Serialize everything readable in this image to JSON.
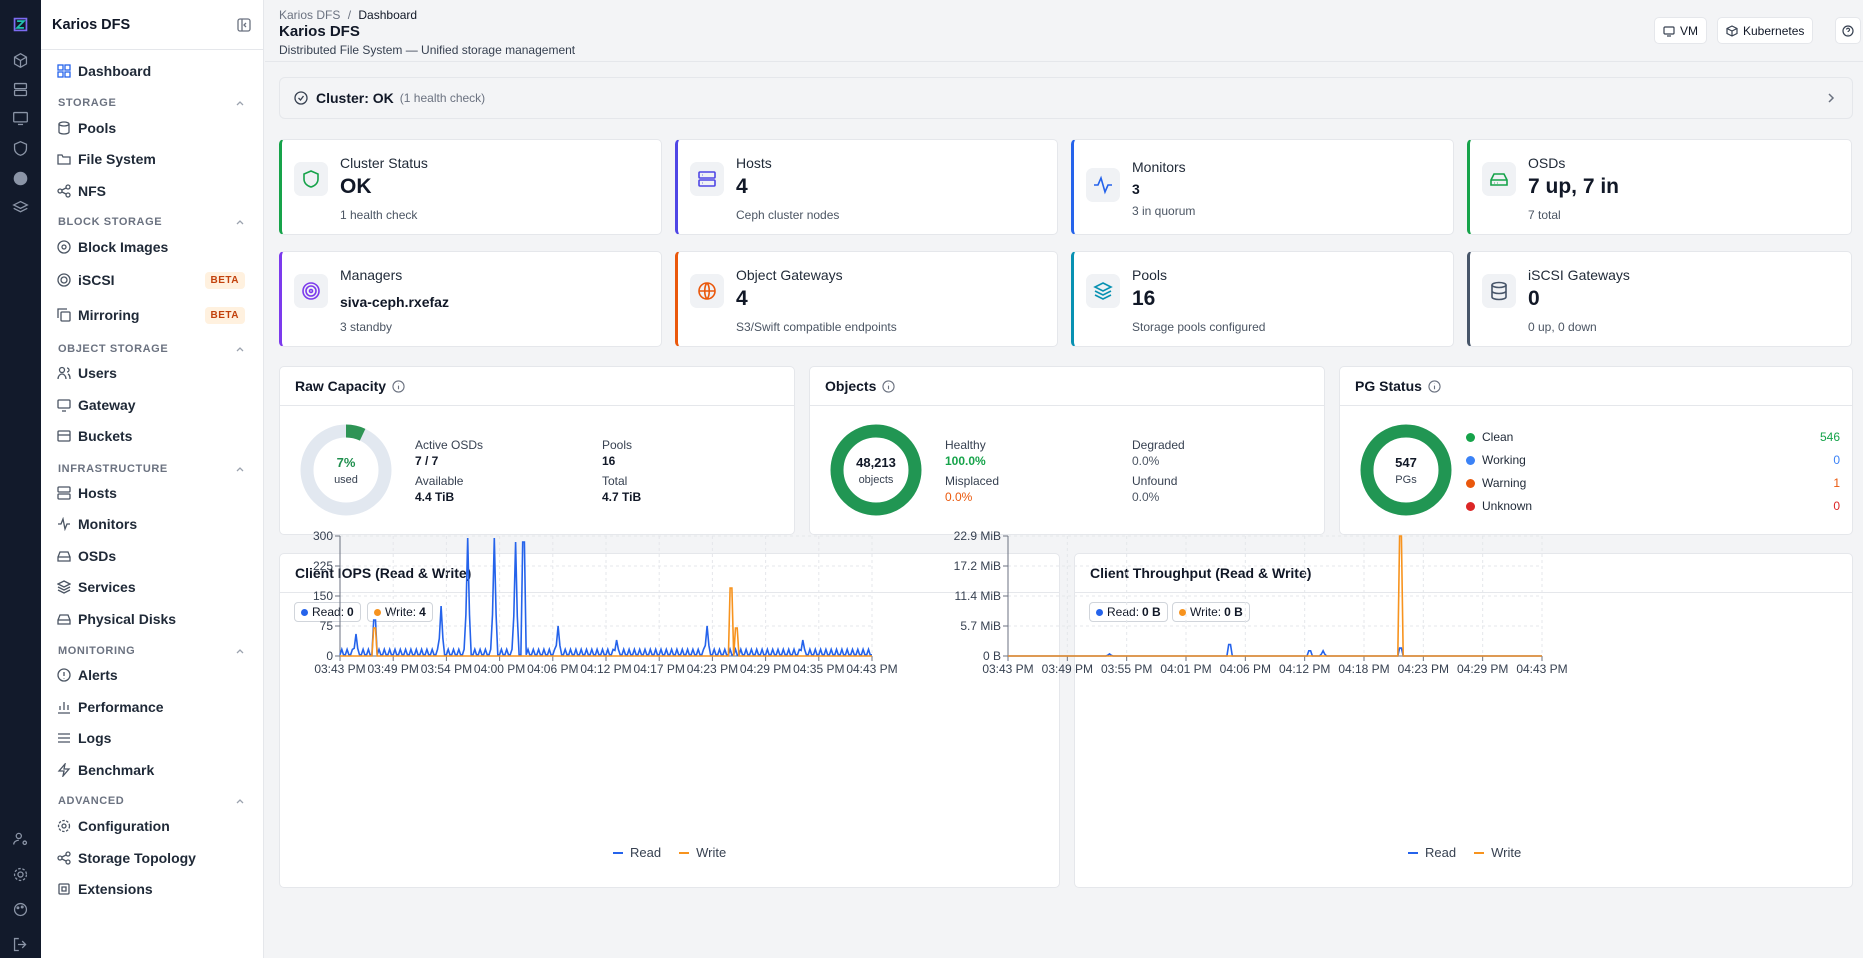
{
  "sidebar": {
    "brand": "Karios DFS",
    "dashboard": "Dashboard",
    "sections": {
      "storage": {
        "title": "STORAGE",
        "items": [
          "Pools",
          "File System",
          "NFS"
        ]
      },
      "block": {
        "title": "BLOCK STORAGE",
        "items": [
          "Block Images",
          "iSCSI",
          "Mirroring"
        ],
        "badge": "BETA"
      },
      "object": {
        "title": "OBJECT STORAGE",
        "items": [
          "Users",
          "Gateway",
          "Buckets"
        ]
      },
      "infra": {
        "title": "INFRASTRUCTURE",
        "items": [
          "Hosts",
          "Monitors",
          "OSDs",
          "Services",
          "Physical Disks"
        ]
      },
      "monitoring": {
        "title": "MONITORING",
        "items": [
          "Alerts",
          "Performance",
          "Logs",
          "Benchmark"
        ]
      },
      "advanced": {
        "title": "ADVANCED",
        "items": [
          "Configuration",
          "Storage Topology",
          "Extensions"
        ]
      }
    }
  },
  "header": {
    "breadcrumb_root": "Karios DFS",
    "breadcrumb_sep": "/",
    "breadcrumb_current": "Dashboard",
    "title": "Karios DFS",
    "subtitle": "Distributed File System — Unified storage management",
    "btn_vm": "VM",
    "btn_k8s": "Kubernetes"
  },
  "health": {
    "title": "Cluster: OK",
    "detail": "(1 health check)"
  },
  "cards": {
    "cluster": {
      "label": "Cluster Status",
      "value": "OK",
      "sub": "1 health check",
      "color": "#16a34a"
    },
    "hosts": {
      "label": "Hosts",
      "value": "4",
      "sub": "Ceph cluster nodes",
      "color": "#4f46e5"
    },
    "monitors": {
      "label": "Monitors",
      "value": "3",
      "sub": "3 in quorum",
      "color": "#2563eb"
    },
    "osds": {
      "label": "OSDs",
      "value": "7 up, 7 in",
      "sub": "7 total",
      "color": "#16a34a"
    },
    "managers": {
      "label": "Managers",
      "value": "siva-ceph.rxefaz",
      "sub": "3 standby",
      "color": "#7c3aed"
    },
    "gateways": {
      "label": "Object Gateways",
      "value": "4",
      "sub": "S3/Swift compatible endpoints",
      "color": "#ea580c"
    },
    "pools": {
      "label": "Pools",
      "value": "16",
      "sub": "Storage pools configured",
      "color": "#0891b2"
    },
    "iscsi": {
      "label": "iSCSI Gateways",
      "value": "0",
      "sub": "0 up, 0 down",
      "color": "#475569"
    }
  },
  "raw": {
    "title": "Raw Capacity",
    "used_pct": 7,
    "pct_label": "7%",
    "used_label": "used",
    "active_osds_label": "Active OSDs",
    "active_osds": "7 / 7",
    "pools_label": "Pools",
    "pools": "16",
    "available_label": "Available",
    "available": "4.4 TiB",
    "total_label": "Total",
    "total": "4.7 TiB"
  },
  "objects": {
    "title": "Objects",
    "count": "48,213",
    "unit": "objects",
    "healthy_label": "Healthy",
    "healthy": "100.0%",
    "degraded_label": "Degraded",
    "degraded": "0.0%",
    "misplaced_label": "Misplaced",
    "misplaced": "0.0%",
    "unfound_label": "Unfound",
    "unfound": "0.0%"
  },
  "pg": {
    "title": "PG Status",
    "count": "547",
    "unit": "PGs",
    "rows": [
      {
        "label": "Clean",
        "value": "546",
        "color": "#16a34a"
      },
      {
        "label": "Working",
        "value": "0",
        "color": "#3b82f6"
      },
      {
        "label": "Warning",
        "value": "1",
        "color": "#ea580c"
      },
      {
        "label": "Unknown",
        "value": "0",
        "color": "#dc2626"
      }
    ]
  },
  "iops": {
    "title": "Client IOPS (Read & Write)",
    "chip_read": "Read:",
    "chip_read_val": "0",
    "chip_write": "Write:",
    "chip_write_val": "4",
    "legend_read": "Read",
    "legend_write": "Write"
  },
  "thr": {
    "title": "Client Throughput (Read & Write)",
    "chip_read": "Read:",
    "chip_read_val": "0 B",
    "chip_write": "Write:",
    "chip_write_val": "0 B",
    "legend_read": "Read",
    "legend_write": "Write"
  },
  "chart_data": [
    {
      "type": "line",
      "title": "Client IOPS (Read & Write)",
      "y_ticks": [
        "0",
        "75",
        "150",
        "225",
        "300"
      ],
      "ylim": [
        0,
        300
      ],
      "x_ticks": [
        "03:43 PM",
        "03:49 PM",
        "03:54 PM",
        "04:00 PM",
        "04:06 PM",
        "04:12 PM",
        "04:17 PM",
        "04:23 PM",
        "04:29 PM",
        "04:35 PM",
        "04:43 PM"
      ],
      "series": [
        {
          "name": "Read",
          "color": "#2563eb",
          "peaks": [
            [
              0.03,
              55
            ],
            [
              0.065,
              90
            ],
            [
              0.19,
              125
            ],
            [
              0.24,
              295
            ],
            [
              0.29,
              295
            ],
            [
              0.33,
              285
            ],
            [
              0.345,
              285
            ],
            [
              0.41,
              75
            ],
            [
              0.52,
              40
            ],
            [
              0.69,
              75
            ],
            [
              0.87,
              40
            ]
          ]
        },
        {
          "name": "Write",
          "color": "#f7931e",
          "peaks": [
            [
              0.065,
              70
            ],
            [
              0.735,
              170
            ],
            [
              0.745,
              70
            ]
          ]
        }
      ]
    },
    {
      "type": "line",
      "title": "Client Throughput (Read & Write)",
      "y_ticks": [
        "0 B",
        "5.7 MiB",
        "11.4 MiB",
        "17.2 MiB",
        "22.9 MiB"
      ],
      "ylim": [
        0,
        22.9
      ],
      "x_ticks": [
        "03:43 PM",
        "03:49 PM",
        "03:55 PM",
        "04:01 PM",
        "04:06 PM",
        "04:12 PM",
        "04:18 PM",
        "04:23 PM",
        "04:29 PM",
        "04:43 PM"
      ],
      "series": [
        {
          "name": "Read",
          "color": "#2563eb",
          "peaks": [
            [
              0.19,
              0.4
            ],
            [
              0.415,
              2.2
            ],
            [
              0.565,
              1.0
            ],
            [
              0.59,
              1.0
            ],
            [
              0.735,
              1.5
            ]
          ]
        },
        {
          "name": "Write",
          "color": "#f7931e",
          "peaks": [
            [
              0.735,
              22.9
            ]
          ]
        }
      ]
    }
  ]
}
